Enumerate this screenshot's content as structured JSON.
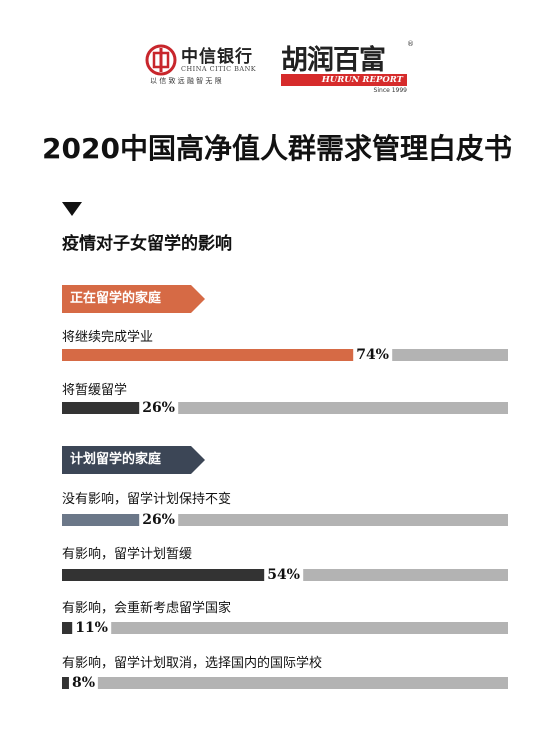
{
  "header": {
    "citic_name_cn": "中信银行",
    "citic_name_en": "CHINA CITIC BANK",
    "citic_slogan": "以 信 致 远   融 智 无 限",
    "hurun_name_cn": "胡润百富",
    "hurun_registered": "®",
    "hurun_name_en": "HURUN REPORT",
    "hurun_since": "Since 1999"
  },
  "title": "2020中国高净值人群需求管理白皮书",
  "section_title": "疫情对子女留学的影响",
  "colors": {
    "orange": "#d66a45",
    "dark": "#333333",
    "slate": "#6b7788",
    "track": "#b3b3b3",
    "navy_tag": "#3c4656",
    "brand_red": "#d62b2b"
  },
  "chart_data": {
    "type": "bar",
    "orientation": "horizontal",
    "xlim": [
      0,
      100
    ],
    "unit": "%",
    "groups": [
      {
        "name": "正在留学的家庭",
        "items": [
          {
            "label": "将继续完成学业",
            "value": 74,
            "display": "74%",
            "color": "#d66a45"
          },
          {
            "label": "将暂缓留学",
            "value": 26,
            "display": "26%",
            "color": "#333333"
          }
        ]
      },
      {
        "name": "计划留学的家庭",
        "items": [
          {
            "label": "没有影响，留学计划保持不变",
            "value": 26,
            "display": "26%",
            "color": "#6b7788"
          },
          {
            "label": "有影响，留学计划暂缓",
            "value": 54,
            "display": "54%",
            "color": "#333333"
          },
          {
            "label": "有影响，会重新考虑留学国家",
            "value": 11,
            "display": "11%",
            "color": "#333333"
          },
          {
            "label": "有影响，留学计划取消，选择国内的国际学校",
            "value": 8,
            "display": "8%",
            "color": "#333333"
          }
        ]
      }
    ]
  }
}
